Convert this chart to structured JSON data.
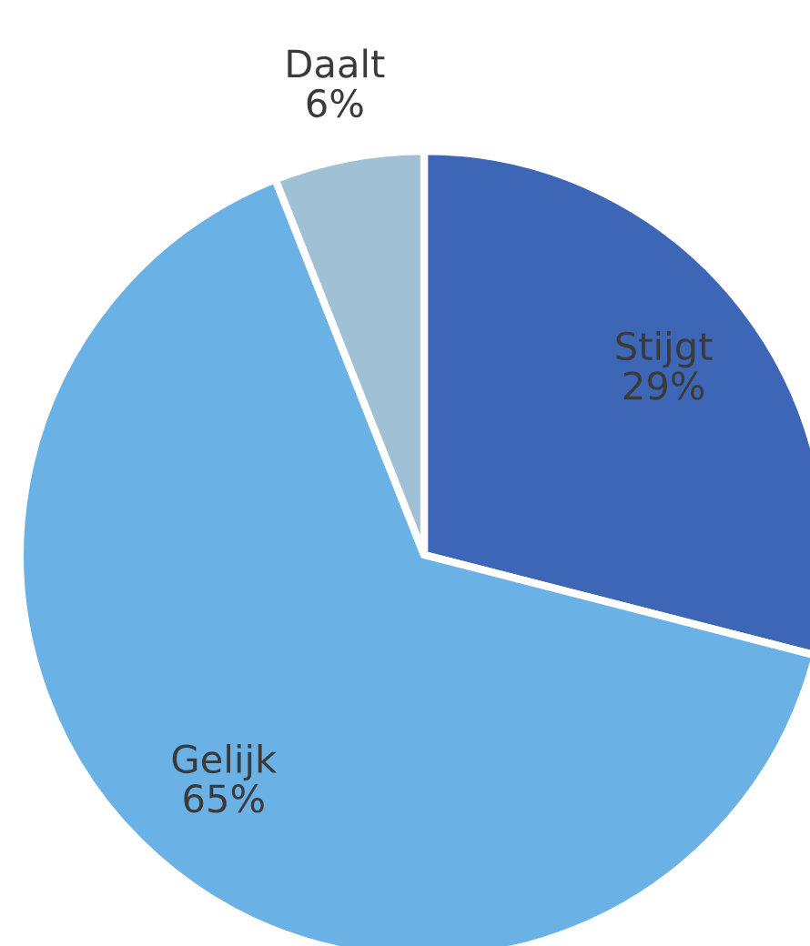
{
  "chart_data": {
    "type": "pie",
    "categories": [
      "Stijgt",
      "Gelijk",
      "Daalt"
    ],
    "values": [
      29,
      65,
      6
    ],
    "value_labels": [
      "29%",
      "65%",
      "6%"
    ],
    "colors": [
      "#3d67b6",
      "#6ab1e5",
      "#a0c0d6"
    ]
  }
}
